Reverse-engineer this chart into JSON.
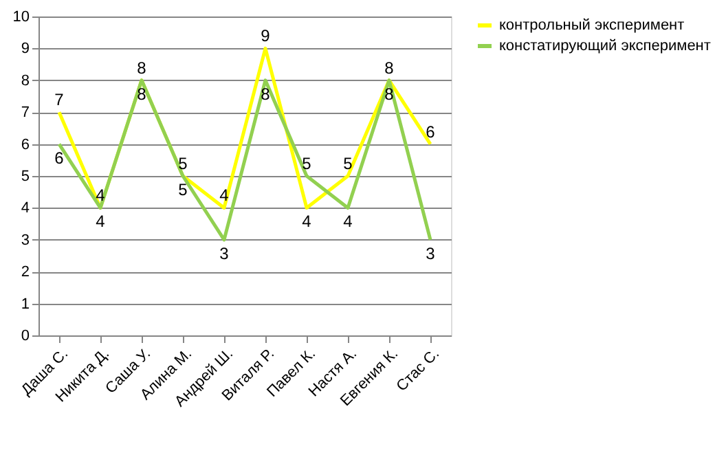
{
  "chart_data": {
    "type": "line",
    "categories": [
      "Даша С.",
      "Никита Д.",
      "Саша У.",
      "Алина М.",
      "Андрей Ш.",
      "Виталя Р.",
      "Павел К.",
      "Настя А.",
      "Евгения К.",
      "Стас С."
    ],
    "series": [
      {
        "name": "контрольный эксперимент",
        "color": "#ffff00",
        "values": [
          7,
          4,
          8,
          5,
          4,
          9,
          4,
          5,
          8,
          6
        ]
      },
      {
        "name": "констатирующий эксперимент",
        "color": "#92d050",
        "values": [
          6,
          4,
          8,
          5,
          3,
          8,
          5,
          4,
          8,
          3
        ]
      }
    ],
    "ylim": [
      0,
      10
    ],
    "yticks": [
      0,
      1,
      2,
      3,
      4,
      5,
      6,
      7,
      8,
      9,
      10
    ],
    "grid": "y",
    "legend": "right",
    "marker": "none",
    "line_style": "solid",
    "data_labels": true
  }
}
